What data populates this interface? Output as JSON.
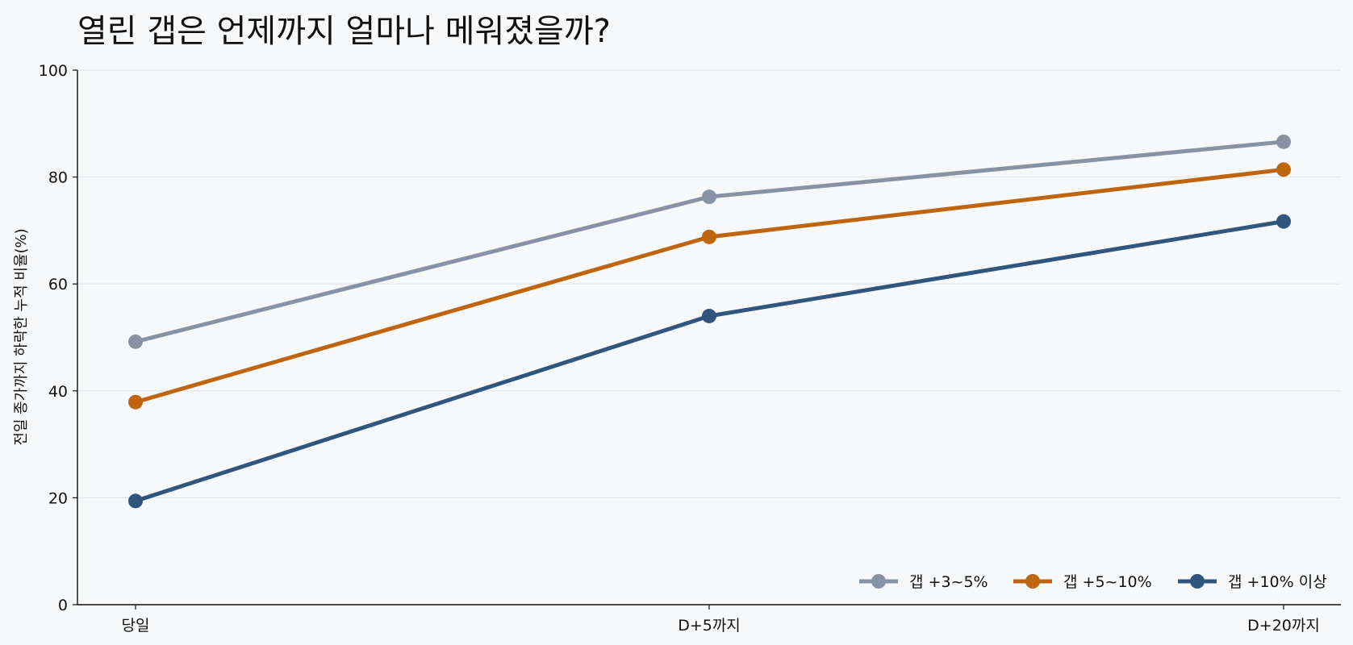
{
  "chart_data": {
    "type": "line",
    "title": "열린 갭은 언제까지 얼마나 메워졌을까?",
    "xlabel": "",
    "ylabel": "전일 종가까지 하락한 누적 비율(%)",
    "categories": [
      "당일",
      "D+5까지",
      "D+20까지"
    ],
    "ylim": [
      0,
      100
    ],
    "yticks": [
      0,
      20,
      40,
      60,
      80,
      100
    ],
    "grid": "horizontal",
    "legend_position": "bottom-right",
    "series": [
      {
        "name": "갭 +3~5%",
        "color": "#8793a4",
        "values": [
          49.2,
          76.3,
          86.6
        ]
      },
      {
        "name": "갭 +5~10%",
        "color": "#c0650f",
        "values": [
          37.9,
          68.8,
          81.4
        ]
      },
      {
        "name": "갭 +10% 이상",
        "color": "#30557f",
        "values": [
          19.4,
          54.0,
          71.7
        ]
      }
    ]
  }
}
